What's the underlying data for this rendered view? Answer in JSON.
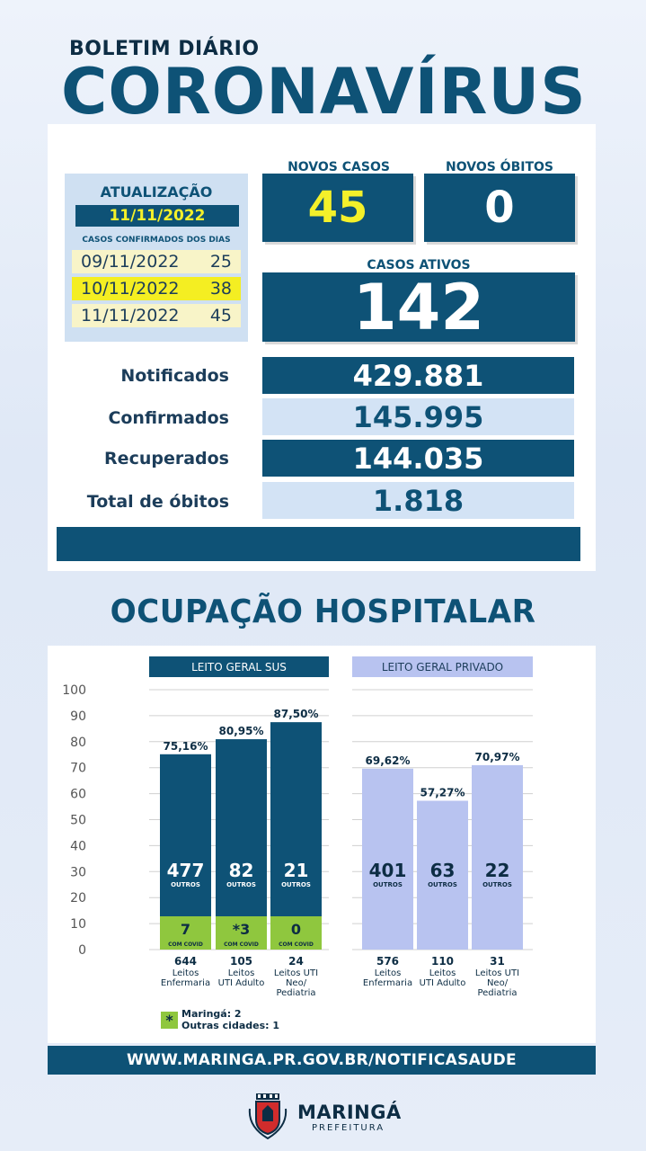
{
  "header": {
    "subtitle": "BOLETIM DIÁRIO",
    "title": "CORONAVÍRUS"
  },
  "update": {
    "label": "ATUALIZAÇÃO",
    "date": "11/11/2022",
    "cases_days_label": "CASOS CONFIRMADOS DOS DIAS",
    "days": [
      {
        "date": "09/11/2022",
        "value": "25"
      },
      {
        "date": "10/11/2022",
        "value": "38"
      },
      {
        "date": "11/11/2022",
        "value": "45"
      }
    ]
  },
  "new_cases": {
    "label": "NOVOS CASOS",
    "value": "45"
  },
  "new_deaths": {
    "label": "NOVOS ÓBITOS",
    "value": "0"
  },
  "active_cases": {
    "label": "CASOS ATIVOS",
    "value": "142"
  },
  "stats": [
    {
      "label": "Notificados",
      "value": "429.881"
    },
    {
      "label": "Confirmados",
      "value": "145.995"
    },
    {
      "label": "Recuperados",
      "value": "144.035"
    },
    {
      "label": "Total de óbitos",
      "value": "1.818"
    }
  ],
  "hospital": {
    "title": "OCUPAÇÃO HOSPITALAR",
    "sus_header": "LEITO GERAL SUS",
    "private_header": "LEITO GERAL PRIVADO",
    "footnote": {
      "symbol": "*",
      "line1": "Maringá: 2",
      "line2": "Outras cidades: 1"
    }
  },
  "chart_data": {
    "type": "bar",
    "ylim": [
      0,
      100
    ],
    "yticks": [
      "0",
      "10",
      "20",
      "30",
      "40",
      "50",
      "60",
      "70",
      "80",
      "90",
      "100"
    ],
    "groups": [
      {
        "name": "LEITO GERAL SUS",
        "color": "#0e5276",
        "covid_color": "#8fc73e",
        "bars": [
          {
            "percent": 75.16,
            "percent_label": "75,16%",
            "others": "477",
            "others_label": "OUTROS",
            "covid": "7",
            "covid_label": "COM COVID",
            "beds": "644",
            "category": [
              "Leitos",
              "Enfermaria"
            ]
          },
          {
            "percent": 80.95,
            "percent_label": "80,95%",
            "others": "82",
            "others_label": "OUTROS",
            "covid": "*3",
            "covid_label": "COM COVID",
            "beds": "105",
            "category": [
              "Leitos",
              "UTI Adulto"
            ]
          },
          {
            "percent": 87.5,
            "percent_label": "87,50%",
            "others": "21",
            "others_label": "OUTROS",
            "covid": "0",
            "covid_label": "COM COVID",
            "beds": "24",
            "category": [
              "Leitos UTI",
              "Neo/",
              "Pediatria"
            ]
          }
        ]
      },
      {
        "name": "LEITO GERAL PRIVADO",
        "color": "#b8c3f0",
        "bars": [
          {
            "percent": 69.62,
            "percent_label": "69,62%",
            "others": "401",
            "others_label": "OUTROS",
            "beds": "576",
            "category": [
              "Leitos",
              "Enfermaria"
            ]
          },
          {
            "percent": 57.27,
            "percent_label": "57,27%",
            "others": "63",
            "others_label": "OUTROS",
            "beds": "110",
            "category": [
              "Leitos",
              "UTI Adulto"
            ]
          },
          {
            "percent": 70.97,
            "percent_label": "70,97%",
            "others": "22",
            "others_label": "OUTROS",
            "beds": "31",
            "category": [
              "Leitos UTI",
              "Neo/",
              "Pediatria"
            ]
          }
        ]
      }
    ]
  },
  "url": "WWW.MARINGA.PR.GOV.BR/NOTIFICASAUDE",
  "logo": {
    "name": "MARINGÁ",
    "sub": "PREFEITURA"
  },
  "colors": {
    "navy": "#0e5276",
    "yellow": "#f4f02a",
    "green": "#8fc73e",
    "lavender": "#b8c3f0",
    "light_blue": "#d3e3f5"
  }
}
